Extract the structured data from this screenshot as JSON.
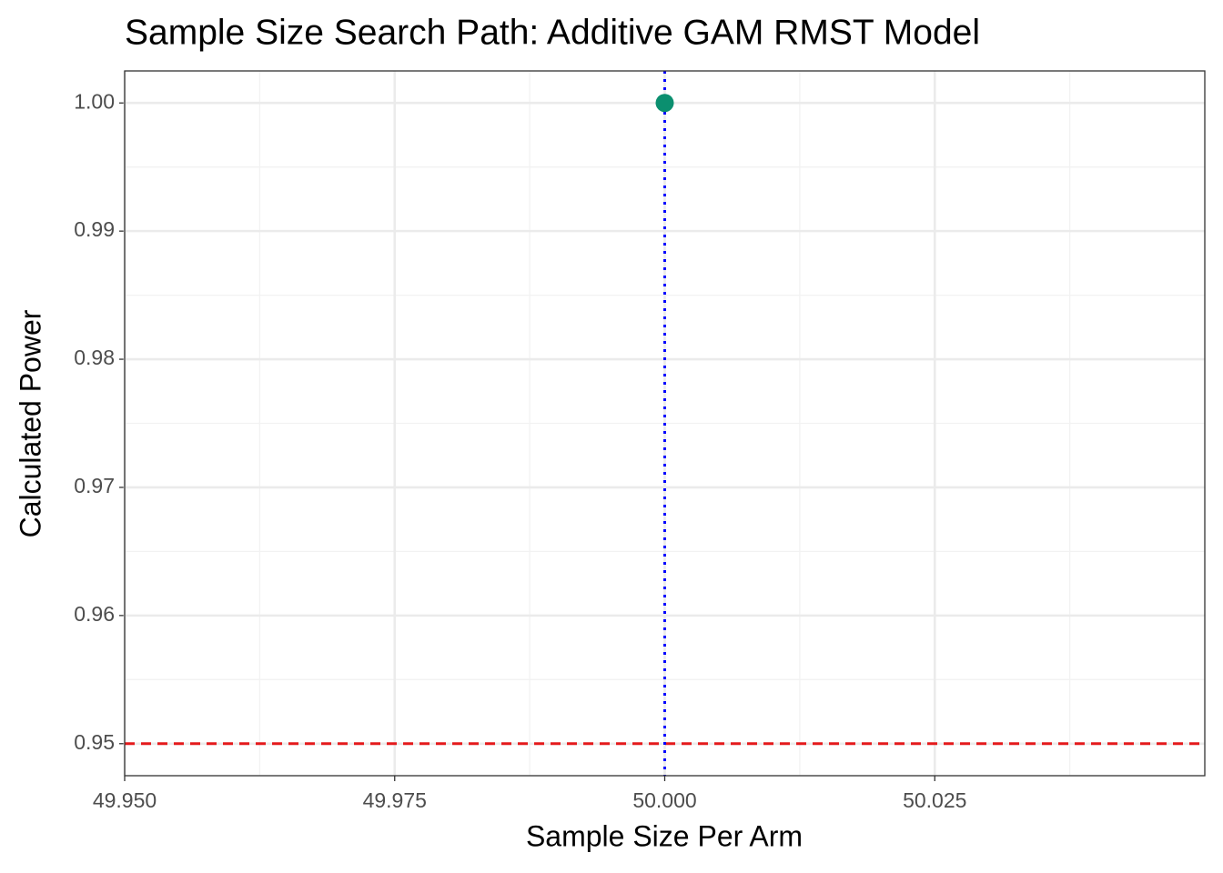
{
  "chart_data": {
    "type": "scatter",
    "title": "Sample Size Search Path: Additive GAM RMST Model",
    "x_label": "Sample Size Per Arm",
    "y_label": "Calculated Power",
    "x": [
      50
    ],
    "series": [
      {
        "color": "#0b8f6f",
        "values": [
          1
        ]
      }
    ],
    "xlim": [
      49.95,
      50.05
    ],
    "ylim": [
      0.9475,
      1.0025
    ],
    "xticks": [
      {
        "value": 49.95,
        "label": "49.950"
      },
      {
        "value": 49.975,
        "label": "49.975"
      },
      {
        "value": 50,
        "label": "50.000"
      },
      {
        "value": 50.025,
        "label": "50.025"
      }
    ],
    "yticks": [
      0.95,
      0.96,
      0.97,
      0.98,
      0.99,
      {
        "value": 1,
        "label": "1.00"
      }
    ],
    "grid": true,
    "hline": {
      "value": 0.95,
      "color": "#e41a1c"
    },
    "vline": {
      "value": 50,
      "color": "#0000ff"
    }
  }
}
